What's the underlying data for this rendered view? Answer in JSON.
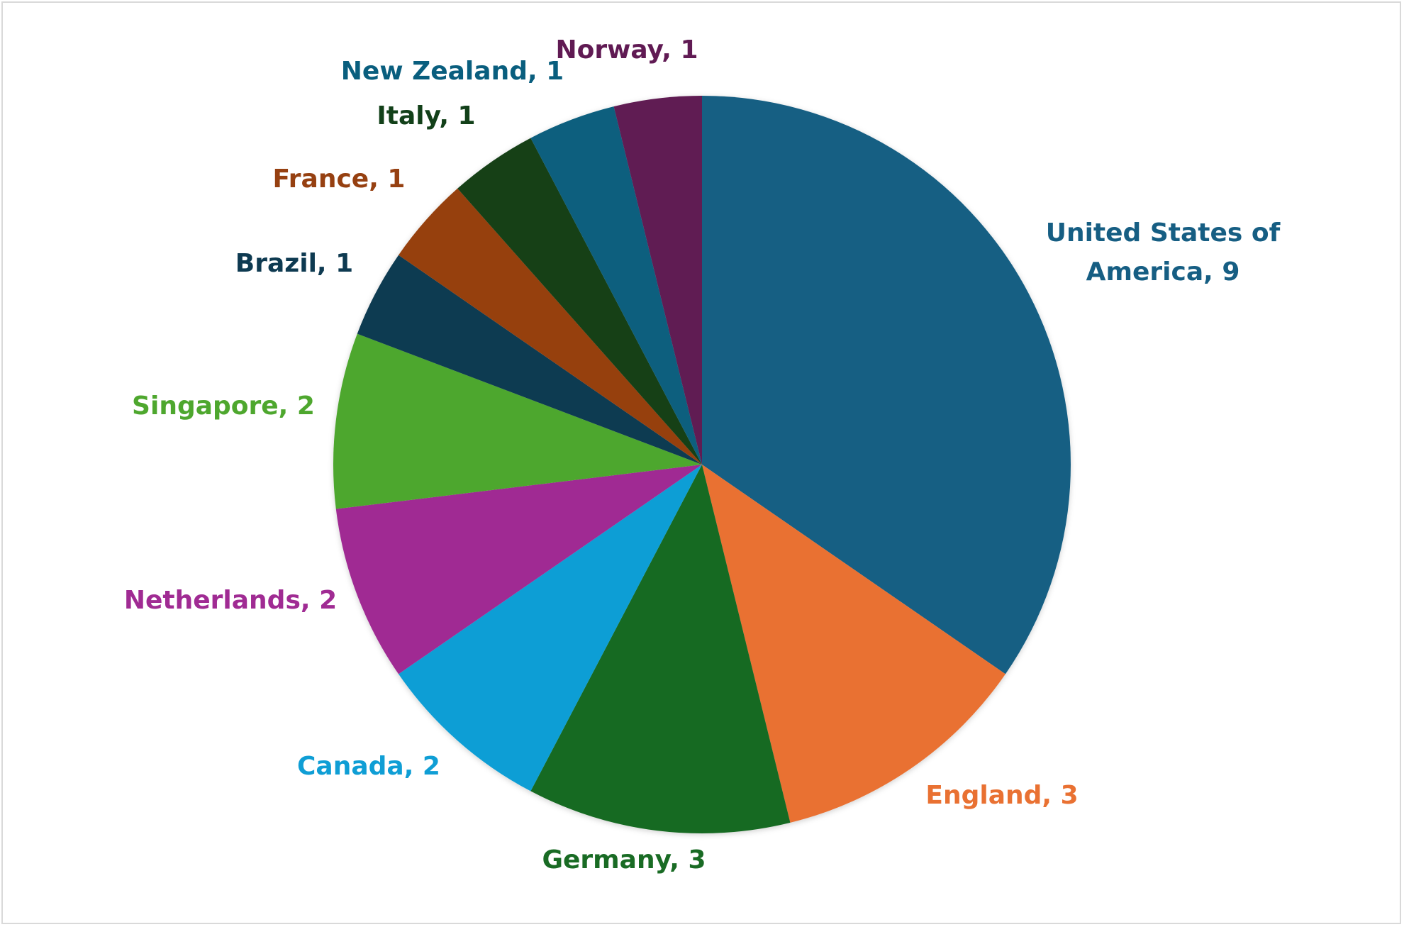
{
  "chart_data": {
    "type": "pie",
    "title": "",
    "categories": [
      "United States of America",
      "England",
      "Germany",
      "Canada",
      "Netherlands",
      "Singapore",
      "Brazil",
      "France",
      "Italy",
      "New Zealand",
      "Norway"
    ],
    "values": [
      9,
      3,
      3,
      2,
      2,
      2,
      1,
      1,
      1,
      1,
      1
    ],
    "colors": [
      "#165e83",
      "#e97132",
      "#196b24",
      "#0f9ed5",
      "#a02b93",
      "#4ea72e",
      "#0e3a51",
      "#964011",
      "#124019",
      "#095e7e",
      "#601a53"
    ],
    "labels": [
      "United States of America, 9",
      "England, 3",
      "Germany, 3",
      "Canada, 2",
      "Netherlands, 2",
      "Singapore, 2",
      "Brazil, 1",
      "France, 1",
      "Italy, 1",
      "New Zealand, 1",
      "Norway, 1"
    ],
    "start": "12 o'clock",
    "direction": "clockwise",
    "legend": "none"
  }
}
